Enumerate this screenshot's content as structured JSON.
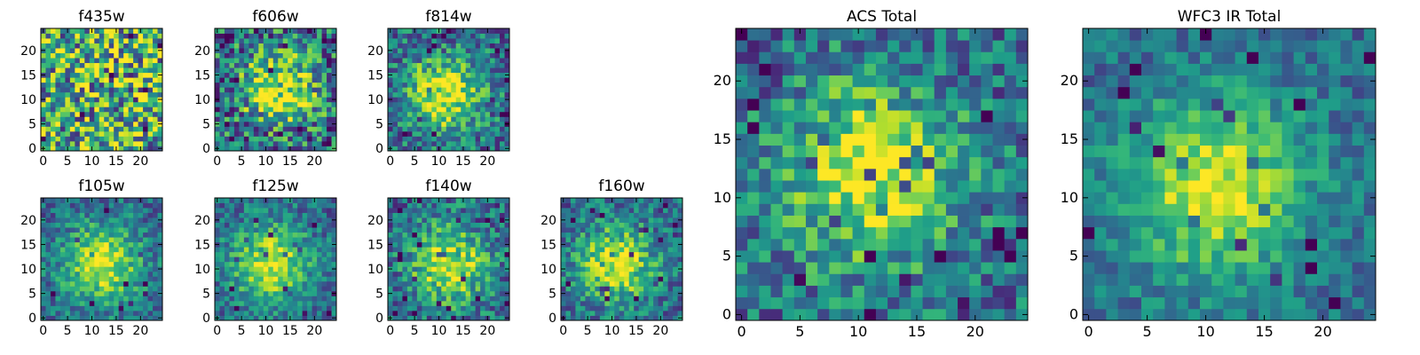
{
  "figure": {
    "background": "#ffffff"
  },
  "chart_data": [
    {
      "type": "heatmap",
      "title": "f435w",
      "xticks": [
        0,
        5,
        10,
        15,
        20
      ],
      "yticks": [
        0,
        5,
        10,
        15,
        20
      ],
      "xlim": [
        0,
        25
      ],
      "ylim": [
        0,
        25
      ],
      "grid_size": 25,
      "colormap": "viridis",
      "peak": null,
      "noise": 1.0
    },
    {
      "type": "heatmap",
      "title": "f606w",
      "xticks": [
        0,
        5,
        10,
        15,
        20
      ],
      "yticks": [
        0,
        5,
        10,
        15,
        20
      ],
      "xlim": [
        0,
        25
      ],
      "ylim": [
        0,
        25
      ],
      "grid_size": 25,
      "colormap": "viridis",
      "peak": [
        13,
        12
      ],
      "noise": 0.8
    },
    {
      "type": "heatmap",
      "title": "f814w",
      "xticks": [
        0,
        5,
        10,
        15,
        20
      ],
      "yticks": [
        0,
        5,
        10,
        15,
        20
      ],
      "xlim": [
        0,
        25
      ],
      "ylim": [
        0,
        25
      ],
      "grid_size": 25,
      "colormap": "viridis",
      "peak": [
        11,
        11
      ],
      "noise": 0.6
    },
    {
      "type": "heatmap",
      "title": "f105w",
      "xticks": [
        0,
        5,
        10,
        15,
        20
      ],
      "yticks": [
        0,
        5,
        10,
        15,
        20
      ],
      "xlim": [
        0,
        25
      ],
      "ylim": [
        0,
        25
      ],
      "grid_size": 25,
      "colormap": "viridis",
      "peak": [
        12,
        11
      ],
      "noise": 0.45
    },
    {
      "type": "heatmap",
      "title": "f125w",
      "xticks": [
        0,
        5,
        10,
        15,
        20
      ],
      "yticks": [
        0,
        5,
        10,
        15,
        20
      ],
      "xlim": [
        0,
        25
      ],
      "ylim": [
        0,
        25
      ],
      "grid_size": 25,
      "colormap": "viridis",
      "peak": [
        11,
        11
      ],
      "noise": 0.45
    },
    {
      "type": "heatmap",
      "title": "f140w",
      "xticks": [
        0,
        5,
        10,
        15,
        20
      ],
      "yticks": [
        0,
        5,
        10,
        15,
        20
      ],
      "xlim": [
        0,
        25
      ],
      "ylim": [
        0,
        25
      ],
      "grid_size": 25,
      "colormap": "viridis",
      "peak": [
        12,
        11
      ],
      "noise": 0.55
    },
    {
      "type": "heatmap",
      "title": "f160w",
      "xticks": [
        0,
        5,
        10,
        15,
        20
      ],
      "yticks": [
        0,
        5,
        10,
        15,
        20
      ],
      "xlim": [
        0,
        25
      ],
      "ylim": [
        0,
        25
      ],
      "grid_size": 25,
      "colormap": "viridis",
      "peak": [
        11,
        11
      ],
      "noise": 0.5
    },
    {
      "type": "heatmap",
      "title": "ACS Total",
      "xticks": [
        0,
        5,
        10,
        15,
        20
      ],
      "yticks": [
        0,
        5,
        10,
        15,
        20
      ],
      "xlim": [
        0,
        25
      ],
      "ylim": [
        0,
        25
      ],
      "grid_size": 25,
      "colormap": "viridis",
      "peak": [
        11,
        12
      ],
      "noise": 0.55
    },
    {
      "type": "heatmap",
      "title": "WFC3 IR Total",
      "xticks": [
        0,
        5,
        10,
        15,
        20
      ],
      "yticks": [
        0,
        5,
        10,
        15,
        20
      ],
      "xlim": [
        0,
        25
      ],
      "ylim": [
        0,
        25
      ],
      "grid_size": 25,
      "colormap": "viridis",
      "peak": [
        11,
        11
      ],
      "noise": 0.35
    }
  ]
}
